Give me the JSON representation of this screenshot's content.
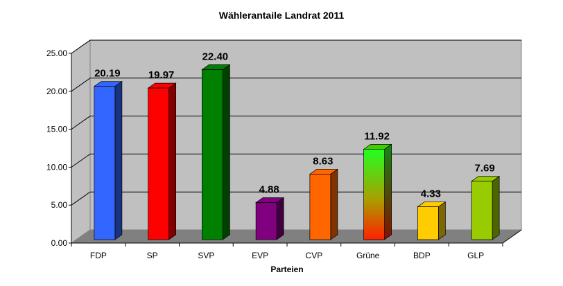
{
  "chart_data": {
    "type": "bar",
    "title": "Wählerantaile Landrat 2011",
    "xlabel": "Parteien",
    "ylabel": "",
    "ylim": [
      0,
      25
    ],
    "yticks": [
      "0.00",
      "5.00",
      "10.00",
      "15.00",
      "20.00",
      "25.00"
    ],
    "categories": [
      "FDP",
      "SP",
      "SVP",
      "EVP",
      "CVP",
      "Grüne",
      "BDP",
      "GLP"
    ],
    "values": [
      20.19,
      19.97,
      22.4,
      4.88,
      8.63,
      11.92,
      4.33,
      7.69
    ],
    "labels": [
      "20.19",
      "19.97",
      "22.40",
      "4.88",
      "8.63",
      "11.92",
      "4.33",
      "7.69"
    ],
    "colors": [
      "#3366ff",
      "#ff0000",
      "#008000",
      "#800080",
      "#ff6600",
      "gradient",
      "#ffcc00",
      "#99cc00"
    ],
    "grid": true,
    "legend": "none"
  }
}
